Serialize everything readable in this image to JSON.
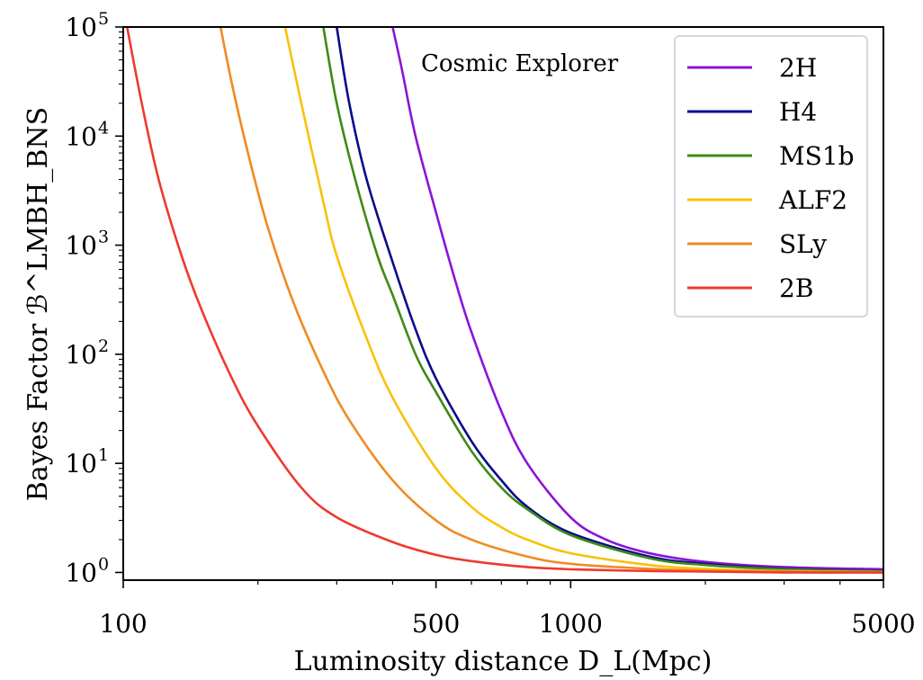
{
  "chart_data": {
    "type": "line",
    "xlabel": "Luminosity distance D_L(Mpc)",
    "ylabel": "Bayes Factor ℬ^LMBH_BNS",
    "x_scale": "log",
    "y_scale": "log",
    "xlim": [
      100,
      5000
    ],
    "ylim": [
      0.85,
      100000
    ],
    "x_ticks": [
      100,
      500,
      1000,
      5000
    ],
    "x_tick_labels": [
      "100",
      "500",
      "1000",
      "5000"
    ],
    "y_ticks": [
      1,
      10,
      100,
      1000,
      10000,
      100000
    ],
    "y_tick_labels": [
      "10",
      "10",
      "10",
      "10",
      "10",
      "10"
    ],
    "y_tick_exponents": [
      "0",
      "1",
      "2",
      "3",
      "4",
      "5"
    ],
    "grid": false,
    "legend_position": "top-right",
    "annotation": "Cosmic Explorer",
    "series": [
      {
        "name": "2H",
        "color": "#8a14d8",
        "points": [
          [
            400,
            100000
          ],
          [
            420,
            40000
          ],
          [
            450,
            10000
          ],
          [
            500,
            2000
          ],
          [
            550,
            500
          ],
          [
            600,
            160
          ],
          [
            700,
            30
          ],
          [
            800,
            10
          ],
          [
            1000,
            3.2
          ],
          [
            1200,
            2.0
          ],
          [
            1500,
            1.5
          ],
          [
            2000,
            1.25
          ],
          [
            3000,
            1.12
          ],
          [
            5000,
            1.07
          ]
        ]
      },
      {
        "name": "H4",
        "color": "#0a0a8c",
        "points": [
          [
            300,
            100000
          ],
          [
            320,
            20000
          ],
          [
            350,
            4000
          ],
          [
            400,
            700
          ],
          [
            450,
            170
          ],
          [
            500,
            60
          ],
          [
            600,
            16
          ],
          [
            700,
            7
          ],
          [
            800,
            4
          ],
          [
            1000,
            2.3
          ],
          [
            1500,
            1.4
          ],
          [
            2000,
            1.2
          ],
          [
            3000,
            1.08
          ],
          [
            5000,
            1.03
          ]
        ]
      },
      {
        "name": "MS1b",
        "color": "#3f8a16",
        "points": [
          [
            280,
            100000
          ],
          [
            300,
            20000
          ],
          [
            330,
            4000
          ],
          [
            370,
            800
          ],
          [
            400,
            350
          ],
          [
            450,
            100
          ],
          [
            500,
            45
          ],
          [
            600,
            13
          ],
          [
            700,
            6
          ],
          [
            800,
            3.8
          ],
          [
            1000,
            2.2
          ],
          [
            1500,
            1.35
          ],
          [
            2000,
            1.17
          ],
          [
            3000,
            1.07
          ],
          [
            5000,
            1.02
          ]
        ]
      },
      {
        "name": "ALF2",
        "color": "#f8c20a",
        "points": [
          [
            230,
            100000
          ],
          [
            250,
            20000
          ],
          [
            280,
            2500
          ],
          [
            300,
            800
          ],
          [
            350,
            140
          ],
          [
            400,
            40
          ],
          [
            500,
            9
          ],
          [
            600,
            4
          ],
          [
            700,
            2.6
          ],
          [
            800,
            2.0
          ],
          [
            1000,
            1.5
          ],
          [
            1500,
            1.17
          ],
          [
            2000,
            1.08
          ],
          [
            3000,
            1.03
          ],
          [
            5000,
            1.01
          ]
        ]
      },
      {
        "name": "SLy",
        "color": "#f08a22",
        "points": [
          [
            165,
            100000
          ],
          [
            175,
            30000
          ],
          [
            190,
            7000
          ],
          [
            210,
            1500
          ],
          [
            240,
            300
          ],
          [
            280,
            70
          ],
          [
            320,
            25
          ],
          [
            400,
            7
          ],
          [
            500,
            3
          ],
          [
            600,
            2.0
          ],
          [
            800,
            1.4
          ],
          [
            1000,
            1.2
          ],
          [
            1500,
            1.08
          ],
          [
            2000,
            1.04
          ],
          [
            3000,
            1.02
          ],
          [
            5000,
            1.0
          ]
        ]
      },
      {
        "name": "2B",
        "color": "#ee3a2e",
        "points": [
          [
            102,
            100000
          ],
          [
            110,
            20000
          ],
          [
            120,
            4000
          ],
          [
            135,
            800
          ],
          [
            150,
            250
          ],
          [
            175,
            60
          ],
          [
            200,
            22
          ],
          [
            250,
            6
          ],
          [
            300,
            3.2
          ],
          [
            400,
            1.9
          ],
          [
            500,
            1.45
          ],
          [
            600,
            1.27
          ],
          [
            800,
            1.12
          ],
          [
            1000,
            1.07
          ],
          [
            1500,
            1.03
          ],
          [
            2000,
            1.02
          ],
          [
            3000,
            1.0
          ],
          [
            5000,
            1.0
          ]
        ]
      }
    ]
  }
}
